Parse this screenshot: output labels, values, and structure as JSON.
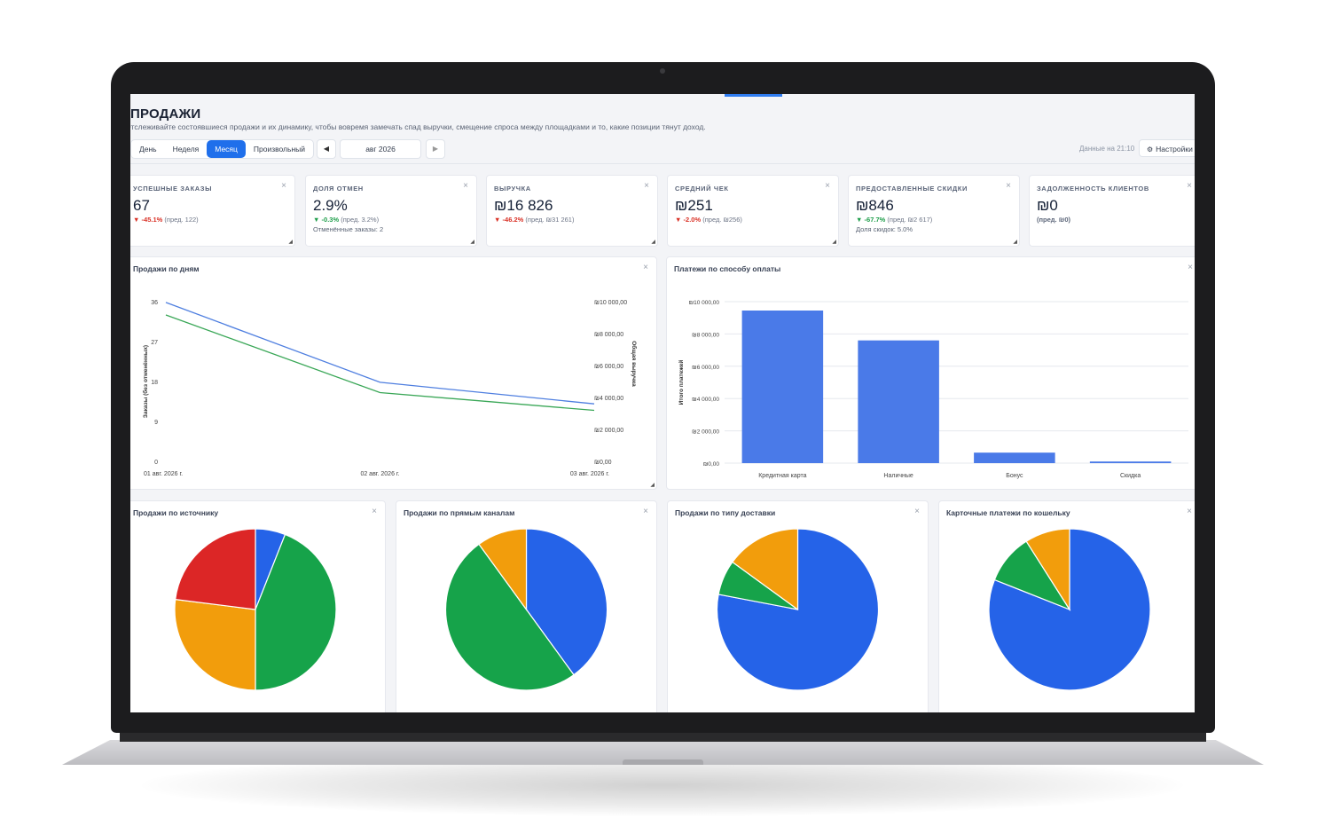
{
  "header": {
    "title": "ПРОДАЖИ",
    "subtitle": "Отслеживайте состоявшиеся продажи и их динамику, чтобы вовремя замечать спад выручки, смещение спроса между площадками и то, какие позиции тянут доход.",
    "periods": [
      "День",
      "Неделя",
      "Месяц",
      "Произвольный"
    ],
    "active_period": "Месяц",
    "prev_icon": "◀",
    "next_icon": "▶",
    "current_period": "авг 2026",
    "data_as_of": "Данные на 21:10",
    "settings_icon": "⚙",
    "settings_label": "Настройки"
  },
  "close_icon": "×",
  "kpis": [
    {
      "label": "УСПЕШНЫЕ ЗАКАЗЫ",
      "value": "67",
      "arrow": "▼",
      "change": "-45.1%",
      "change_dir": "neg",
      "prev": "(пред. 122)",
      "extra": ""
    },
    {
      "label": "ДОЛЯ ОТМЕН",
      "value": "2.9%",
      "arrow": "▼",
      "change": "-0.3%",
      "change_dir": "pos",
      "prev": "(пред. 3.2%)",
      "extra": "Отменённые заказы: 2"
    },
    {
      "label": "ВЫРУЧКА",
      "value": "₪16 826",
      "arrow": "▼",
      "change": "-46.2%",
      "change_dir": "neg",
      "prev": "(пред. ₪31 261)",
      "extra": ""
    },
    {
      "label": "СРЕДНИЙ ЧЕК",
      "value": "₪251",
      "arrow": "▼",
      "change": "-2.0%",
      "change_dir": "neg",
      "prev": "(пред. ₪256)",
      "extra": ""
    },
    {
      "label": "ПРЕДОСТАВЛЕННЫЕ СКИДКИ",
      "value": "₪846",
      "arrow": "▼",
      "change": "-67.7%",
      "change_dir": "pos",
      "prev": "(пред. ₪2 617)",
      "extra": "Доля скидок: 5.0%"
    },
    {
      "label": "ЗАДОЛЖЕННОСТЬ КЛИЕНТОВ",
      "value": "₪0",
      "arrow": "",
      "change": "",
      "change_dir": "",
      "prev": "(пред. ₪0)",
      "extra": ""
    }
  ],
  "panels": {
    "sales_by_day": "Продажи по дням",
    "payments_by_method": "Платежи по способу оплаты",
    "by_source": "Продажи по источнику",
    "by_direct_channel": "Продажи по прямым каналам",
    "by_delivery": "Продажи по типу доставки",
    "card_by_wallet": "Карточные платежи по кошельку"
  },
  "chart_data": [
    {
      "type": "line",
      "title": "Продажи по дням",
      "x": [
        "01 авг. 2026 г.",
        "02 авг. 2026 г.",
        "03 авг. 2026 г."
      ],
      "ylabel": "Заказы (без отменённых)",
      "ylabel_right": "Общая выручка",
      "ylim": [
        0,
        36
      ],
      "yticks": [
        "0",
        "9",
        "18",
        "27",
        "36"
      ],
      "ylim_right": [
        0,
        10000
      ],
      "yticks_right": [
        "₪0,00",
        "₪2 000,00",
        "₪4 000,00",
        "₪6 000,00",
        "₪8 000,00",
        "₪10 000,00"
      ],
      "series": [
        {
          "axis": "right",
          "color": "#4f7fe0",
          "values": [
            9950,
            4950,
            3600
          ]
        },
        {
          "axis": "left",
          "color": "#3aa757",
          "values": [
            33,
            15.5,
            11.5
          ]
        }
      ]
    },
    {
      "type": "bar",
      "title": "Платежи по способу оплаты",
      "categories": [
        "Кредитная карта",
        "Наличные",
        "Бонус",
        "Скидка"
      ],
      "values": [
        9450,
        7600,
        650,
        100
      ],
      "ylabel": "Итого платежей",
      "ylim": [
        0,
        10000
      ],
      "yticks": [
        "₪0,00",
        "₪2 000,00",
        "₪4 000,00",
        "₪6 000,00",
        "₪8 000,00",
        "₪10 000,00"
      ],
      "color": "#4a7ae8"
    },
    {
      "type": "pie",
      "title": "Продажи по источнику",
      "slices": [
        {
          "value": 6,
          "color": "#2563e8"
        },
        {
          "value": 44,
          "color": "#16a34a"
        },
        {
          "value": 27,
          "color": "#f29d0c"
        },
        {
          "value": 23,
          "color": "#dc2626"
        }
      ]
    },
    {
      "type": "pie",
      "title": "Продажи по прямым каналам",
      "slices": [
        {
          "value": 40,
          "color": "#2563e8"
        },
        {
          "value": 50,
          "color": "#16a34a"
        },
        {
          "value": 10,
          "color": "#f29d0c"
        }
      ]
    },
    {
      "type": "pie",
      "title": "Продажи по типу доставки",
      "slices": [
        {
          "value": 78,
          "color": "#2563e8"
        },
        {
          "value": 7,
          "color": "#16a34a"
        },
        {
          "value": 15,
          "color": "#f29d0c"
        }
      ]
    },
    {
      "type": "pie",
      "title": "Карточные платежи по кошельку",
      "slices": [
        {
          "value": 81,
          "color": "#2563e8"
        },
        {
          "value": 10,
          "color": "#16a34a"
        },
        {
          "value": 9,
          "color": "#f29d0c"
        }
      ]
    }
  ]
}
